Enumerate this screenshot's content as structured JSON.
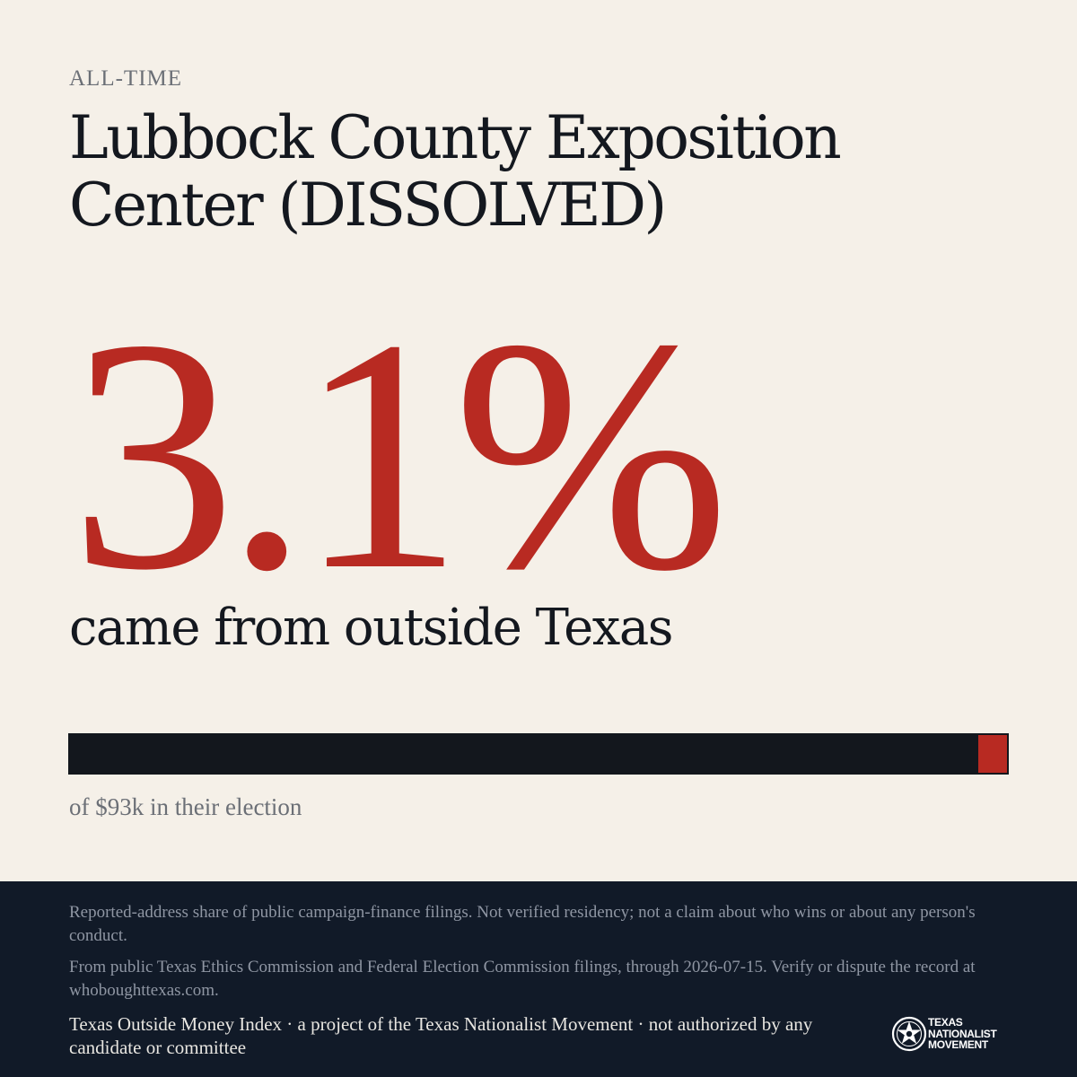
{
  "header": {
    "eyebrow": "ALL-TIME",
    "title": "Lubbock County Exposition Center (DISSOLVED)"
  },
  "stat": {
    "value_label": "3.1%",
    "share_fraction": 0.031,
    "caption": "came from outside Texas"
  },
  "bar": {
    "caption": "of $93k in their election"
  },
  "footer": {
    "disclaimer": "Reported-address share of public campaign-finance filings. Not verified residency; not a claim about who wins or about any person's conduct.",
    "source": "From public Texas Ethics Commission and Federal Election Commission filings, through 2026-07-15. Verify or dispute the record at whoboughttexas.com.",
    "credit": "Texas Outside Money Index · a project of the Texas Nationalist Movement · not authorized by any candidate or committee",
    "logo": {
      "icon": "star-seal-icon",
      "line1": "TEXAS",
      "line2": "NATIONALIST",
      "line3": "MOVEMENT"
    }
  },
  "colors": {
    "accent": "#b82a22",
    "ink": "#14181f",
    "paper": "#f5f0e8",
    "footer_bg": "#111a28"
  }
}
